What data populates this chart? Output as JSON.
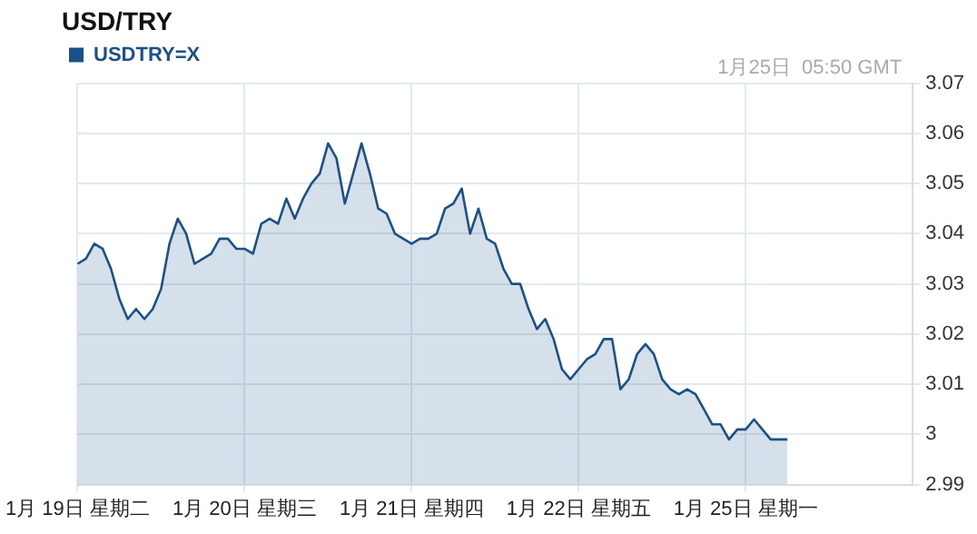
{
  "chart_data": {
    "type": "area",
    "title": "USD/TRY",
    "annotations": [
      "1月25日  05:50 GMT"
    ],
    "categories": [
      "1月 19日 星期二",
      null,
      null,
      null,
      null,
      null,
      null,
      null,
      null,
      null,
      null,
      null,
      null,
      null,
      null,
      null,
      null,
      null,
      null,
      null,
      "1月 20日 星期三",
      null,
      null,
      null,
      null,
      null,
      null,
      null,
      null,
      null,
      null,
      null,
      null,
      null,
      null,
      null,
      null,
      null,
      null,
      null,
      "1月 21日 星期四",
      null,
      null,
      null,
      null,
      null,
      null,
      null,
      null,
      null,
      null,
      null,
      null,
      null,
      null,
      null,
      null,
      null,
      null,
      null,
      "1月 22日 星期五",
      null,
      null,
      null,
      null,
      null,
      null,
      null,
      null,
      null,
      null,
      null,
      null,
      null,
      null,
      null,
      null,
      null,
      null,
      null,
      "1月 25日 星期一",
      null,
      null,
      null,
      null,
      null,
      null,
      null,
      null,
      null,
      null,
      null,
      null,
      null,
      null,
      null,
      null,
      null,
      null,
      null,
      null
    ],
    "ylim": [
      2.99,
      3.07
    ],
    "yticks": [
      2.99,
      3.0,
      3.01,
      3.02,
      3.03,
      3.04,
      3.05,
      3.06,
      3.07
    ],
    "grid": true,
    "legend": "top left",
    "series": [
      {
        "name": "USDTRY=X",
        "color": "#1a5189",
        "values": [
          3.034,
          3.035,
          3.038,
          3.037,
          3.033,
          3.027,
          3.023,
          3.025,
          3.023,
          3.025,
          3.029,
          3.038,
          3.043,
          3.04,
          3.034,
          3.035,
          3.036,
          3.039,
          3.039,
          3.037,
          3.037,
          3.036,
          3.042,
          3.043,
          3.042,
          3.047,
          3.043,
          3.047,
          3.05,
          3.052,
          3.058,
          3.055,
          3.046,
          3.052,
          3.058,
          3.052,
          3.045,
          3.044,
          3.04,
          3.039,
          3.038,
          3.039,
          3.039,
          3.04,
          3.045,
          3.046,
          3.049,
          3.04,
          3.045,
          3.039,
          3.038,
          3.033,
          3.03,
          3.03,
          3.025,
          3.021,
          3.023,
          3.019,
          3.013,
          3.011,
          3.013,
          3.015,
          3.016,
          3.019,
          3.019,
          3.009,
          3.011,
          3.016,
          3.018,
          3.016,
          3.011,
          3.009,
          3.008,
          3.009,
          3.008,
          3.005,
          3.002,
          3.002,
          2.999,
          3.001,
          3.001,
          3.003,
          3.001,
          2.999,
          2.999,
          2.999,
          null,
          null,
          null,
          null,
          null,
          null,
          null,
          null,
          null,
          null,
          null,
          null,
          null,
          null,
          null
        ]
      }
    ]
  }
}
